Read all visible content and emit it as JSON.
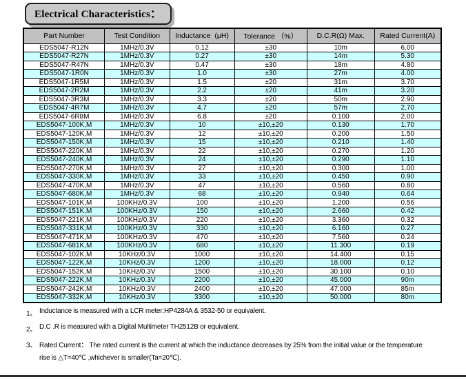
{
  "page": {
    "title": "Electrical Characteristics："
  },
  "table": {
    "columns": [
      {
        "key": "part-number",
        "label": "Part Number"
      },
      {
        "key": "test-condition",
        "label": "Test Condition"
      },
      {
        "key": "inductance",
        "label": "Inductance  (μH)"
      },
      {
        "key": "tolerance",
        "label": "Tolerance （%）"
      },
      {
        "key": "dcr-max",
        "label": "D.C.R(Ω) Max."
      },
      {
        "key": "rated-current",
        "label": "Rated Current(A)"
      }
    ],
    "rows": [
      [
        "EDS5047-R12N",
        "1MHz/0.3V",
        "0.12",
        "±30",
        "10m",
        "6.00"
      ],
      [
        "EDS5047-R27N",
        "1MHz/0.3V",
        "0.27",
        "±30",
        "14m",
        "5.30"
      ],
      [
        "EDS5047-R47N",
        "1MHz/0.3V",
        "0.47",
        "±30",
        "18m",
        "4.80"
      ],
      [
        "EDS5047-1R0N",
        "1MHz/0.3V",
        "1.0",
        "±30",
        "27m",
        "4.00"
      ],
      [
        "EDS5047-1R5M",
        "1MHz/0.3V",
        "1.5",
        "±20",
        "31m",
        "3.70"
      ],
      [
        "EDS5047-2R2M",
        "1MHz/0.3V",
        "2.2",
        "±20",
        "41m",
        "3.20"
      ],
      [
        "EDS5047-3R3M",
        "1MHz/0.3V",
        "3.3",
        "±20",
        "50m",
        "2.90"
      ],
      [
        "EDS5047-4R7M",
        "1MHz/0.3V",
        "4.7",
        "±20",
        "57m",
        "2.70"
      ],
      [
        "EDS5047-6R8M",
        "1MHz/0.3V",
        "6.8",
        "±20",
        "0.100",
        "2.00"
      ],
      [
        "EDS5047-100K,M",
        "1MHz/0.3V",
        "10",
        "±10,±20",
        "0.130",
        "1.70"
      ],
      [
        "EDS5047-120K,M",
        "1MHz/0.3V",
        "12",
        "±10,±20",
        "0.200",
        "1.50"
      ],
      [
        "EDS5047-150K,M",
        "1MHz/0.3V",
        "15",
        "±10,±20",
        "0.210",
        "1.40"
      ],
      [
        "EDS5047-220K,M",
        "1MHz/0.3V",
        "22",
        "±10,±20",
        "0.270",
        "1.20"
      ],
      [
        "EDS5047-240K,M",
        "1MHz/0.3V",
        "24",
        "±10,±20",
        "0.290",
        "1.10"
      ],
      [
        "EDS5047-270K,M",
        "1MHz/0.3V",
        "27",
        "±10,±20",
        "0.300",
        "1.00"
      ],
      [
        "EDS5047-330K,M",
        "1MHz/0.3V",
        "33",
        "±10,±20",
        "0.450",
        "0.90"
      ],
      [
        "EDS5047-470K,M",
        "1MHz/0.3V",
        "47",
        "±10,±20",
        "0.560",
        "0.80"
      ],
      [
        "EDS5047-680K,M",
        "1MHz/0.3V",
        "68",
        "±10,±20",
        "0.940",
        "0.64"
      ],
      [
        "EDS5047-101K,M",
        "100KHz/0.3V",
        "100",
        "±10,±20",
        "1.200",
        "0.56"
      ],
      [
        "EDS5047-151K,M",
        "100KHz/0.3V",
        "150",
        "±10,±20",
        "2.660",
        "0.42"
      ],
      [
        "EDS5047-221K,M",
        "100KHz/0.3V",
        "220",
        "±10,±20",
        "3.360",
        "0.32"
      ],
      [
        "EDS5047-331K,M",
        "100KHz/0.3V",
        "330",
        "±10,±20",
        "6.160",
        "0.27"
      ],
      [
        "EDS5047-471K,M",
        "100KHz/0.3V",
        "470",
        "±10,±20",
        "7.560",
        "0.24"
      ],
      [
        "EDS5047-681K,M",
        "100KHz/0.3V",
        "680",
        "±10,±20",
        "11.300",
        "0.19"
      ],
      [
        "EDS5047-102K,M",
        "10KHz/0.3V",
        "1000",
        "±10,±20",
        "14.400",
        "0.15"
      ],
      [
        "EDS5047-122K,M",
        "10KHz/0.3V",
        "1200",
        "±10,±20",
        "18.000",
        "0.12"
      ],
      [
        "EDS5047-152K,M",
        "10KHz/0.3V",
        "1500",
        "±10,±20",
        "30.100",
        "0.10"
      ],
      [
        "EDS5047-222K,M",
        "10KHz/0.3V",
        "2200",
        "±10,±20",
        "45.000",
        "90m"
      ],
      [
        "EDS5047-242K,M",
        "10KHz/0.3V",
        "2400",
        "±10,±20",
        "47.000",
        "85m"
      ],
      [
        "EDS5047-332K,M",
        "10KHz/0.3V",
        "3300",
        "±10,±20",
        "50.000",
        "80m"
      ]
    ]
  },
  "notes": [
    {
      "num": "1、",
      "lines": [
        "Inductance is measured with a LCR meter:HP4284A & 3532-50 or equivalent."
      ]
    },
    {
      "num": "2、",
      "lines": [
        "D.C .R is measured with a Digital Multimeter TH2512B or equivalent."
      ]
    },
    {
      "num": "3、",
      "lines": [
        "Rated Current： The rated current is the current at which the inductance decreases by 25% from the initial value or the temperature",
        "rise is △T=40℃ ,whichever is smaller(Ta=20℃)."
      ]
    }
  ],
  "colors": {
    "header_bg": "#c0c0c0",
    "row_alt_bg": "#ccffff",
    "title_bg": "#c9c9c9",
    "border": "#000000",
    "shadow": "#b3b3b3"
  }
}
